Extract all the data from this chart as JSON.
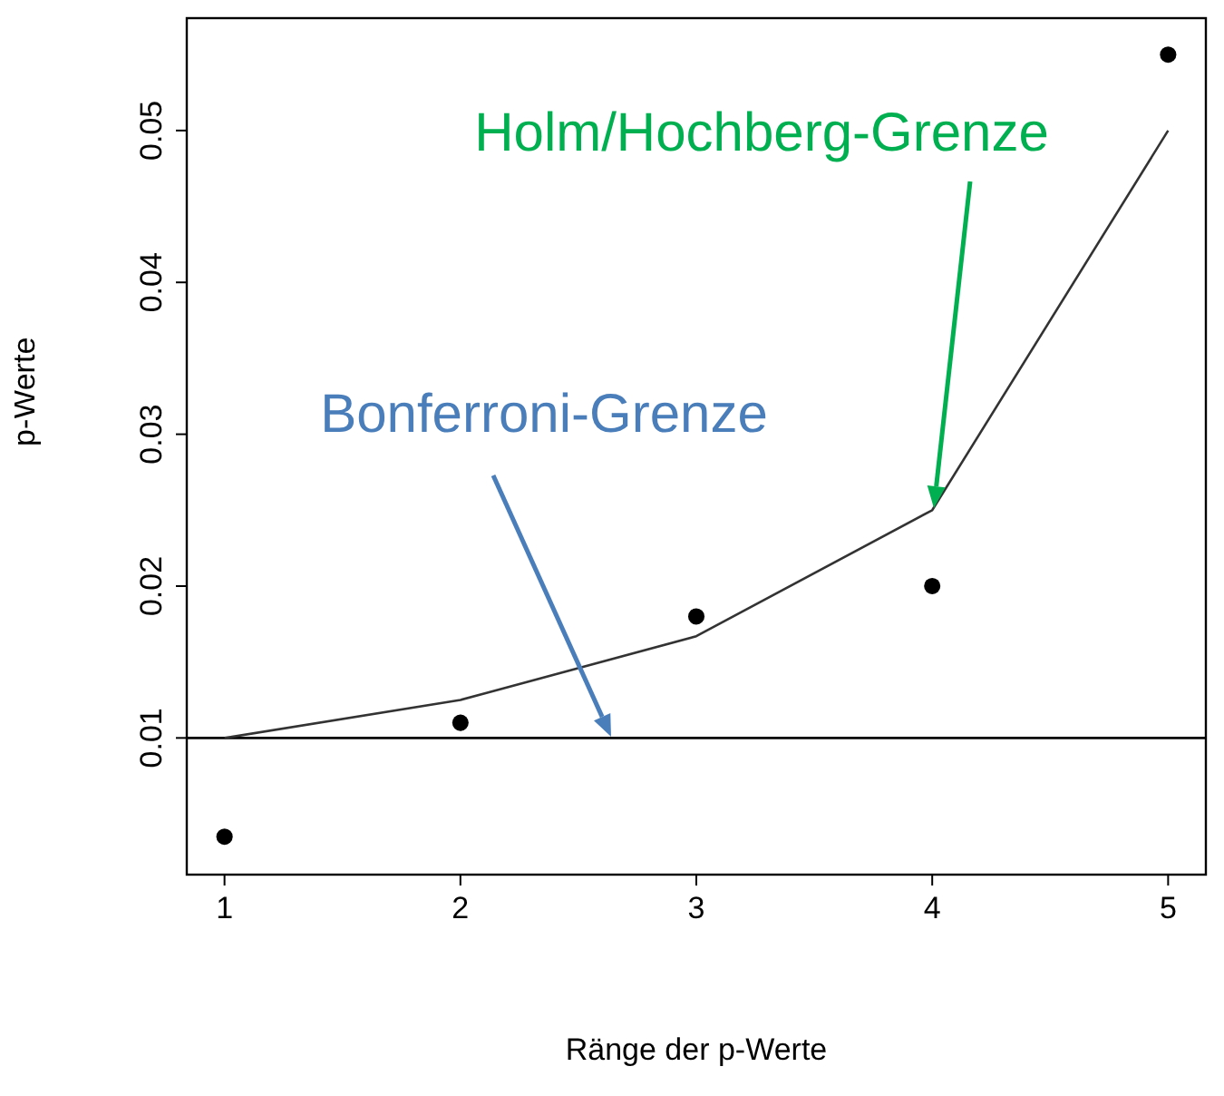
{
  "chart_data": {
    "type": "scatter",
    "xlabel": "Ränge der p-Werte",
    "ylabel": "p-Werte",
    "marker": "circle",
    "x": [
      1,
      2,
      3,
      4,
      5
    ],
    "series": [
      {
        "color": "#000000",
        "values": [
          0.0035,
          0.011,
          0.018,
          0.02,
          0.055
        ]
      },
      {
        "type": "line",
        "color": "#333333",
        "values": [
          0.01,
          0.0125,
          0.0167,
          0.025,
          0.05
        ],
        "marker": "none"
      }
    ],
    "xlim": [
      0.84,
      5.16
    ],
    "ylim": [
      0.001,
      0.0574
    ],
    "xticks": [
      1,
      2,
      3,
      4,
      5
    ],
    "yticks": [
      0.01,
      0.02,
      0.03,
      0.04,
      0.05
    ],
    "ref_lines": [
      {
        "axis": "y",
        "value": 0.01,
        "color": "#000000"
      }
    ],
    "annotations": [
      "Holm/Hochberg-Grenze",
      "Bonferroni-Grenze"
    ],
    "grid": false
  }
}
